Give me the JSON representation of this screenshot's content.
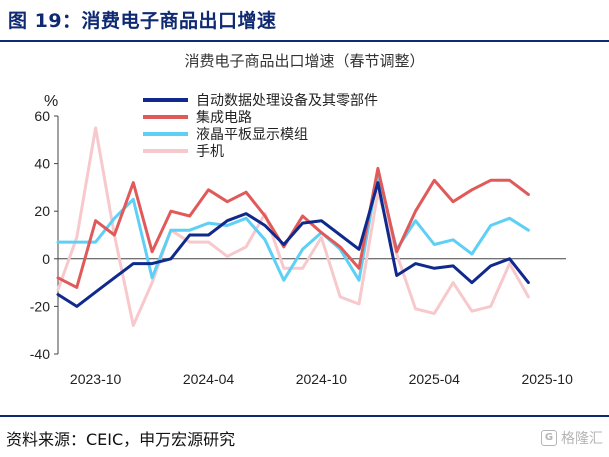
{
  "figure": {
    "title": "图 19：消费电子商品出口增速",
    "source": "资料来源：CEIC，申万宏源研究",
    "watermark": "格隆汇",
    "watermark_logo": "G"
  },
  "chart_data": {
    "type": "line",
    "title": "消费电子商品出口增速（春节调整）",
    "ylabel": "%",
    "xlabel": "",
    "ylim": [
      -40,
      60
    ],
    "yticks": [
      -40,
      -20,
      0,
      20,
      40,
      60
    ],
    "grid": false,
    "legend_position": "top-center",
    "x": [
      "2023-08",
      "2023-09",
      "2023-10",
      "2023-11",
      "2023-12",
      "2024-01",
      "2024-02",
      "2024-03",
      "2024-04",
      "2024-05",
      "2024-06",
      "2024-07",
      "2024-08",
      "2024-09",
      "2024-10",
      "2024-11",
      "2024-12",
      "2025-01",
      "2025-02",
      "2025-03",
      "2025-04",
      "2025-05",
      "2025-06",
      "2025-07",
      "2025-08",
      "2025-09",
      "2025-10",
      "2025-11"
    ],
    "x_tick_labels": [
      {
        "x": "2023-10",
        "label": "2023-10"
      },
      {
        "x": "2024-04",
        "label": "2024-04"
      },
      {
        "x": "2024-10",
        "label": "2024-10"
      },
      {
        "x": "2025-04",
        "label": "2025-04"
      },
      {
        "x": "2025-10",
        "label": "2025-10"
      }
    ],
    "series": [
      {
        "name": "自动数据处理设备及其零部件",
        "color": "#0f2a8c",
        "values": [
          -15,
          -20,
          -14,
          -8,
          -2,
          -2,
          0,
          10,
          10,
          16,
          19,
          14,
          6,
          15,
          16,
          10,
          4,
          32,
          -7,
          -2,
          -4,
          -3,
          -10,
          -3,
          0,
          -10,
          null,
          null
        ]
      },
      {
        "name": "集成电路",
        "color": "#e05a5a",
        "values": [
          -8,
          -12,
          16,
          10,
          32,
          3,
          20,
          18,
          29,
          24,
          28,
          18,
          5,
          18,
          11,
          5,
          -4,
          38,
          3,
          20,
          33,
          24,
          29,
          33,
          33,
          27,
          null,
          null
        ]
      },
      {
        "name": "液晶平板显示模组",
        "color": "#5fcff5",
        "values": [
          7,
          7,
          7,
          17,
          25,
          -8,
          12,
          12,
          15,
          14,
          17,
          8,
          -9,
          4,
          11,
          4,
          -9,
          36,
          4,
          16,
          6,
          8,
          2,
          14,
          17,
          12,
          null,
          null
        ]
      },
      {
        "name": "手机",
        "color": "#f7c9cc",
        "values": [
          -13,
          9,
          55,
          10,
          -28,
          -10,
          12,
          7,
          7,
          1,
          5,
          19,
          -4,
          -4,
          9,
          -16,
          -19,
          28,
          2,
          -21,
          -23,
          -10,
          -22,
          -20,
          -2,
          -16,
          null,
          null
        ]
      }
    ]
  }
}
